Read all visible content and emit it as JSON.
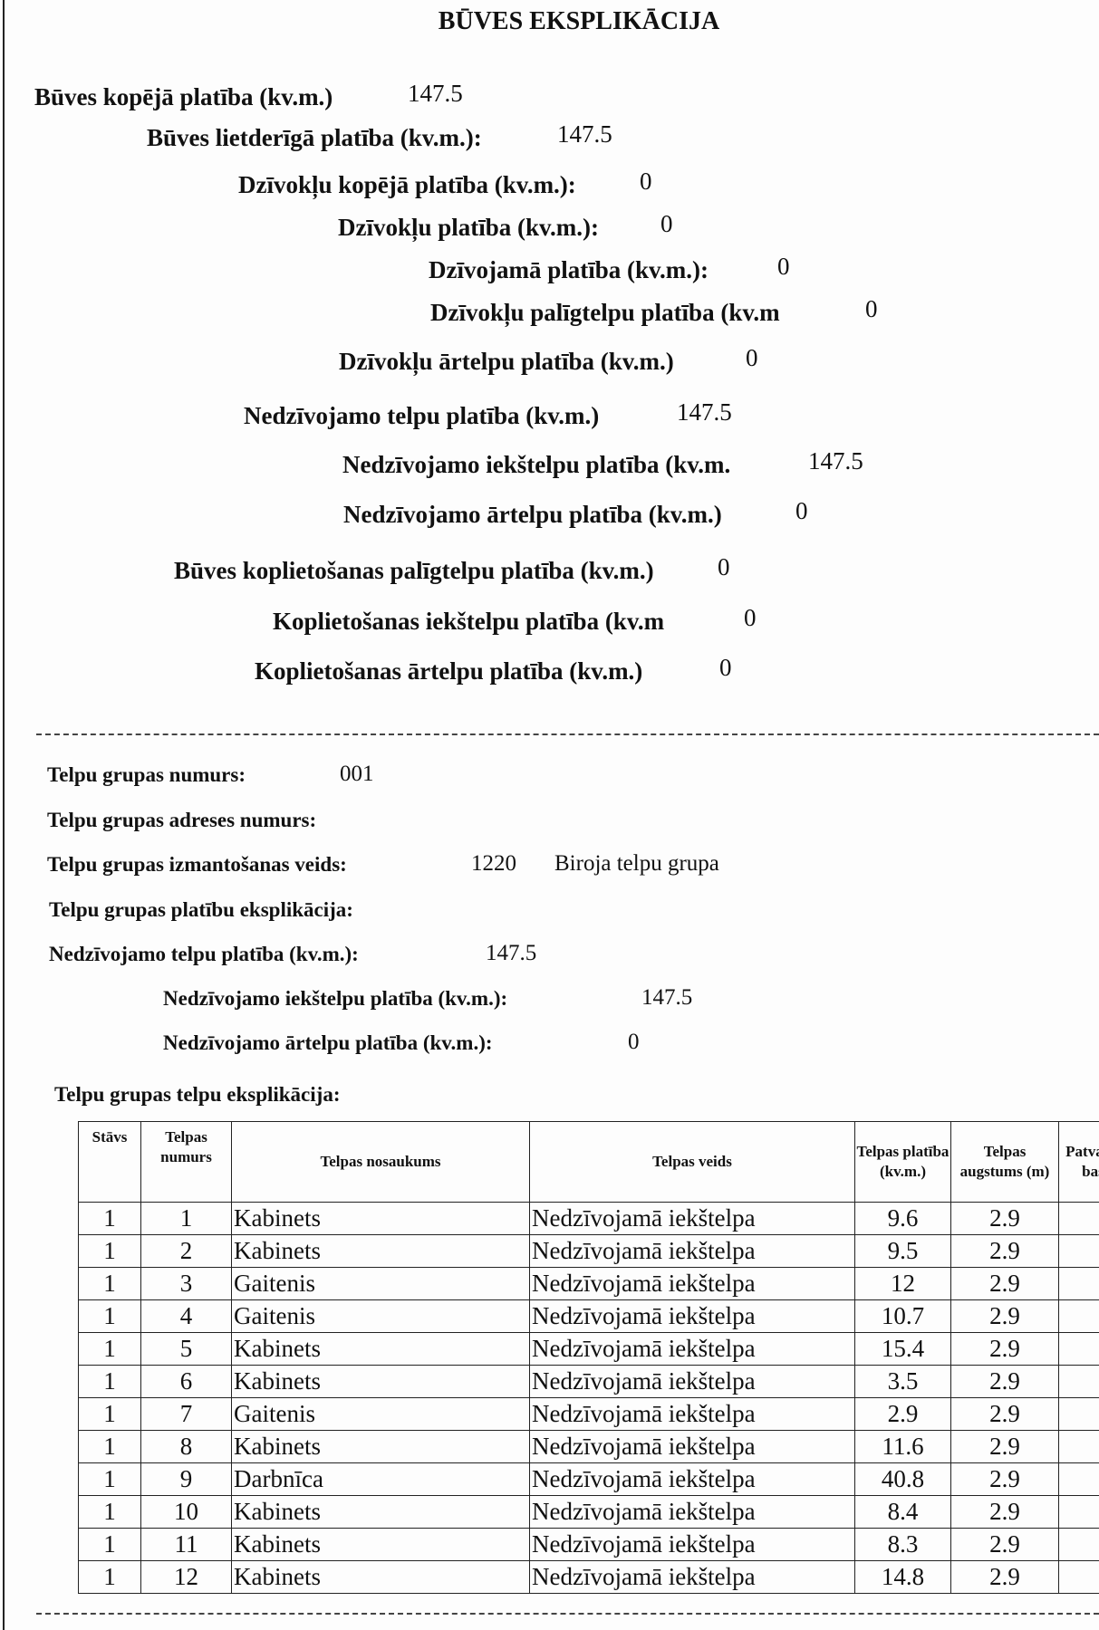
{
  "title": "BŪVES EKSPLIKĀCIJA",
  "summary": [
    {
      "label": "Būves kopējā platība (kv.m.)",
      "value": "147.5"
    },
    {
      "label": "Būves lietderīgā platība (kv.m.):",
      "value": "147.5"
    },
    {
      "label": "Dzīvokļu kopējā platība (kv.m.):",
      "value": "0"
    },
    {
      "label": "Dzīvokļu platība (kv.m.):",
      "value": "0"
    },
    {
      "label": "Dzīvojamā platība (kv.m.):",
      "value": "0"
    },
    {
      "label": "Dzīvokļu palīgtelpu platība (kv.m",
      "value": "0"
    },
    {
      "label": "Dzīvokļu ārtelpu platība (kv.m.)",
      "value": "0"
    },
    {
      "label": "Nedzīvojamo telpu platība (kv.m.)",
      "value": "147.5"
    },
    {
      "label": "Nedzīvojamo iekštelpu platība (kv.m.",
      "value": "147.5"
    },
    {
      "label": "Nedzīvojamo ārtelpu platība (kv.m.)",
      "value": "0"
    },
    {
      "label": "Būves koplietošanas palīgtelpu platība (kv.m.)",
      "value": "0"
    },
    {
      "label": "Koplietošanas iekštelpu platība (kv.m",
      "value": "0"
    },
    {
      "label": "Koplietošanas ārtelpu platība (kv.m.)",
      "value": "0"
    }
  ],
  "group": {
    "number_label": "Telpu grupas numurs:",
    "number": "001",
    "address_label": "Telpu grupas adreses numurs:",
    "use_label": "Telpu grupas izmantošanas veids:",
    "use_code": "1220",
    "use_name": "Biroja telpu grupa",
    "areas_label": "Telpu grupas platību eksplikācija:",
    "nonres_label": "Nedzīvojamo telpu platība (kv.m.):",
    "nonres": "147.5",
    "nonres_in_label": "Nedzīvojamo iekštelpu platība (kv.m.):",
    "nonres_in": "147.5",
    "nonres_out_label": "Nedzīvojamo ārtelpu platība (kv.m.):",
    "nonres_out": "0",
    "rooms_label": "Telpu grupas telpu eksplikācija:"
  },
  "table": {
    "headers": [
      "Stāvs",
      "Telpas numurs",
      "Telpas nosaukums",
      "Telpas veids",
      "Telpas platība (kv.m.)",
      "Telpas augstums (m)",
      "Patva būvn bas pa"
    ],
    "rows": [
      [
        "1",
        "1",
        "Kabinets",
        "Nedzīvojamā iekštelpa",
        "9.6",
        "2.9"
      ],
      [
        "1",
        "2",
        "Kabinets",
        "Nedzīvojamā iekštelpa",
        "9.5",
        "2.9"
      ],
      [
        "1",
        "3",
        "Gaitenis",
        "Nedzīvojamā iekštelpa",
        "12",
        "2.9"
      ],
      [
        "1",
        "4",
        "Gaitenis",
        "Nedzīvojamā iekštelpa",
        "10.7",
        "2.9"
      ],
      [
        "1",
        "5",
        "Kabinets",
        "Nedzīvojamā iekštelpa",
        "15.4",
        "2.9"
      ],
      [
        "1",
        "6",
        "Kabinets",
        "Nedzīvojamā iekštelpa",
        "3.5",
        "2.9"
      ],
      [
        "1",
        "7",
        "Gaitenis",
        "Nedzīvojamā iekštelpa",
        "2.9",
        "2.9"
      ],
      [
        "1",
        "8",
        "Kabinets",
        "Nedzīvojamā iekštelpa",
        "11.6",
        "2.9"
      ],
      [
        "1",
        "9",
        "Darbnīca",
        "Nedzīvojamā iekštelpa",
        "40.8",
        "2.9"
      ],
      [
        "1",
        "10",
        "Kabinets",
        "Nedzīvojamā iekštelpa",
        "8.4",
        "2.9"
      ],
      [
        "1",
        "11",
        "Kabinets",
        "Nedzīvojamā iekštelpa",
        "8.3",
        "2.9"
      ],
      [
        "1",
        "12",
        "Kabinets",
        "Nedzīvojamā iekštelpa",
        "14.8",
        "2.9"
      ]
    ]
  }
}
